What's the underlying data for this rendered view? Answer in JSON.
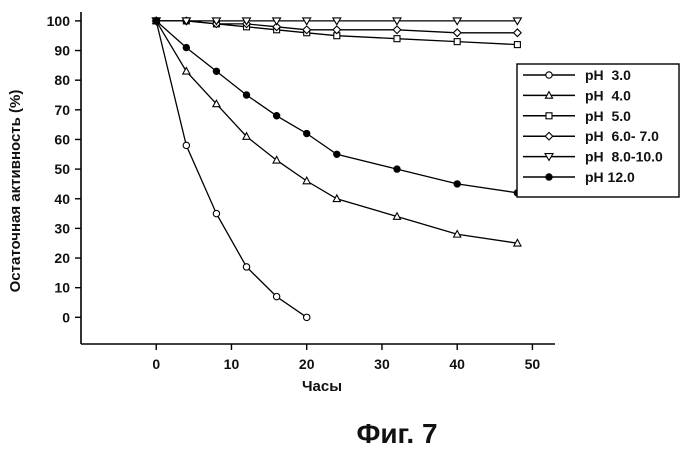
{
  "chart_data": {
    "type": "line",
    "title": "",
    "xlabel": "Часы",
    "ylabel": "Остаточная активность (%)",
    "xlim": [
      -10,
      53
    ],
    "ylim": [
      -9,
      103
    ],
    "xticks": [
      0,
      10,
      20,
      30,
      40,
      50
    ],
    "yticks": [
      0,
      10,
      20,
      30,
      40,
      50,
      60,
      70,
      80,
      90,
      100
    ],
    "grid": false,
    "legend_position": "right",
    "series": [
      {
        "name": "pH  3.0",
        "marker": "circle-open",
        "x": [
          0,
          4,
          8,
          12,
          16,
          20
        ],
        "y": [
          100,
          58,
          35,
          17,
          7,
          0
        ]
      },
      {
        "name": "pH  4.0",
        "marker": "triangle-up-open",
        "x": [
          0,
          4,
          8,
          12,
          16,
          20,
          24,
          32,
          40,
          48
        ],
        "y": [
          100,
          83,
          72,
          61,
          53,
          46,
          40,
          34,
          28,
          25
        ]
      },
      {
        "name": "pH  5.0",
        "marker": "square-open",
        "x": [
          0,
          4,
          8,
          12,
          16,
          20,
          24,
          32,
          40,
          48
        ],
        "y": [
          100,
          100,
          99,
          98,
          97,
          96,
          95,
          94,
          93,
          92
        ]
      },
      {
        "name": "pH  6.0- 7.0",
        "marker": "diamond-open",
        "x": [
          0,
          4,
          8,
          12,
          16,
          20,
          24,
          32,
          40,
          48
        ],
        "y": [
          100,
          100,
          99,
          99,
          98,
          97,
          97,
          97,
          96,
          96
        ]
      },
      {
        "name": "pH  8.0-10.0",
        "marker": "triangle-down-open",
        "x": [
          0,
          4,
          8,
          12,
          16,
          20,
          24,
          32,
          40,
          48
        ],
        "y": [
          100,
          100,
          100,
          100,
          100,
          100,
          100,
          100,
          100,
          100
        ]
      },
      {
        "name": "pH 12.0",
        "marker": "circle-filled",
        "x": [
          0,
          4,
          8,
          12,
          16,
          20,
          24,
          32,
          40,
          48
        ],
        "y": [
          100,
          91,
          83,
          75,
          68,
          62,
          55,
          50,
          45,
          42
        ]
      }
    ]
  },
  "caption": "Фиг. 7"
}
